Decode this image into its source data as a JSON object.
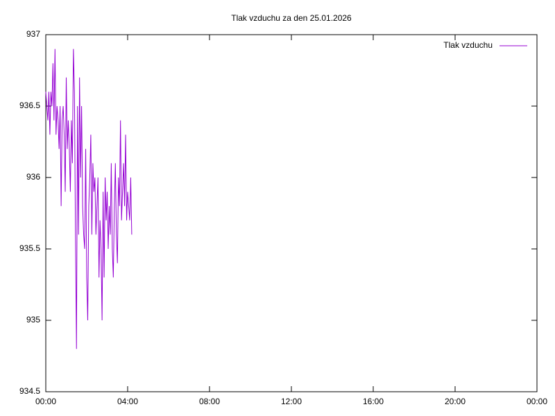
{
  "chart_data": {
    "type": "line",
    "title": "Tlak vzduchu za den 25.01.2026",
    "x": [
      0,
      0.05,
      0.1,
      0.15,
      0.2,
      0.25,
      0.3,
      0.35,
      0.4,
      0.45,
      0.5,
      0.55,
      0.6,
      0.65,
      0.7,
      0.75,
      0.8,
      0.85,
      0.9,
      0.95,
      1,
      1.05,
      1.1,
      1.15,
      1.2,
      1.25,
      1.3,
      1.35,
      1.4,
      1.45,
      1.5,
      1.55,
      1.6,
      1.65,
      1.7,
      1.75,
      1.8,
      1.85,
      1.9,
      1.95,
      2,
      2.05,
      2.1,
      2.15,
      2.2,
      2.25,
      2.3,
      2.35,
      2.4,
      2.45,
      2.5,
      2.55,
      2.6,
      2.65,
      2.7,
      2.75,
      2.8,
      2.85,
      2.9,
      2.95,
      3,
      3.05,
      3.1,
      3.15,
      3.2,
      3.25,
      3.3,
      3.35,
      3.4,
      3.45,
      3.5,
      3.55,
      3.6,
      3.65,
      3.7,
      3.75,
      3.8,
      3.85,
      3.9,
      3.95,
      4,
      4.05,
      4.1,
      4.15,
      4.2
    ],
    "series": [
      {
        "name": "Tlak vzduchu",
        "color": "#9400d3",
        "values": [
          936.6,
          936.5,
          936.4,
          936.6,
          936.3,
          936.6,
          936.5,
          936.8,
          936.4,
          936.9,
          936.3,
          936.5,
          936.4,
          936.2,
          936.5,
          935.8,
          936.4,
          936.5,
          936.3,
          935.9,
          936.7,
          936.2,
          936.4,
          936.2,
          935.9,
          936.4,
          936.1,
          936.9,
          936.6,
          935.6,
          934.8,
          936.5,
          935.6,
          936.7,
          936.0,
          936.5,
          935.8,
          935.6,
          935.5,
          936.2,
          935.3,
          935.0,
          935.8,
          936.0,
          936.3,
          935.6,
          936.1,
          935.9,
          936.0,
          935.6,
          935.8,
          936.0,
          935.3,
          935.7,
          935.5,
          935.0,
          935.9,
          935.3,
          936.0,
          935.7,
          935.9,
          935.5,
          935.8,
          935.6,
          936.1,
          935.5,
          935.3,
          935.8,
          936.1,
          935.6,
          935.4,
          936.0,
          935.8,
          936.4,
          935.7,
          935.9,
          936.1,
          935.8,
          936.3,
          935.7,
          935.9,
          935.8,
          935.7,
          936.0,
          935.6
        ]
      }
    ],
    "xlim": [
      0,
      24
    ],
    "xticks": [
      {
        "value": 0,
        "label": "00:00"
      },
      {
        "value": 4,
        "label": "04:00"
      },
      {
        "value": 8,
        "label": "08:00"
      },
      {
        "value": 12,
        "label": "12:00"
      },
      {
        "value": 16,
        "label": "16:00"
      },
      {
        "value": 20,
        "label": "20:00"
      },
      {
        "value": 24,
        "label": "00:00"
      }
    ],
    "ylim": [
      934.5,
      937
    ],
    "yticks": [
      934.5,
      935,
      935.5,
      936,
      936.5,
      937
    ],
    "grid": false,
    "legend": "top-right"
  }
}
